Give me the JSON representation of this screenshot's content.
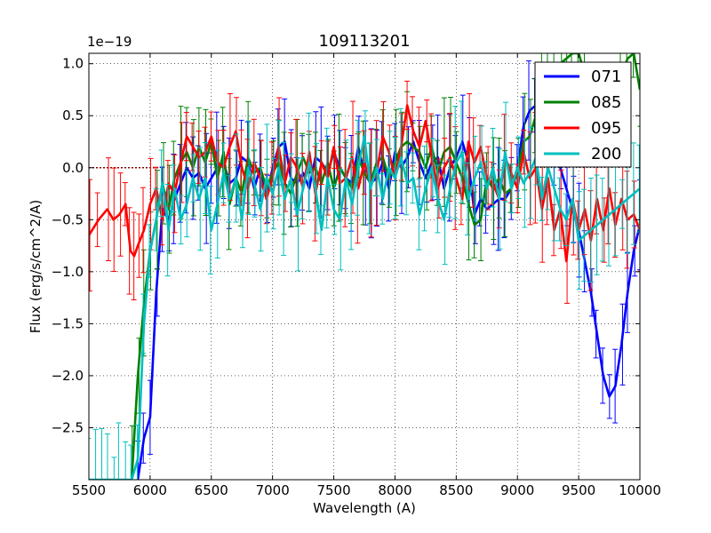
{
  "chart_data": {
    "type": "line",
    "title": "109113201",
    "xlabel": "Wavelength (A)",
    "ylabel": "Flux (erg/s/cm^2/A)",
    "offset_text": "1e−19",
    "xlim": [
      5500,
      10000
    ],
    "ylim": [
      -3.0,
      1.1
    ],
    "xticks": [
      5500,
      6000,
      6500,
      7000,
      7500,
      8000,
      8500,
      9000,
      9500,
      10000
    ],
    "yticks": [
      1.0,
      0.5,
      0.0,
      -0.5,
      -1.0,
      -1.5,
      -2.0,
      -2.5
    ],
    "ytick_labels": [
      "1.0",
      "0.5",
      "0.0",
      "−0.5",
      "−1.0",
      "−1.5",
      "−2.0",
      "−2.5"
    ],
    "grid": true,
    "legend_position": "top-right",
    "colors": {
      "071": "#0000ff",
      "085": "#008000",
      "095": "#ff0000",
      "200": "#00bfbf"
    },
    "series": [
      {
        "name": "071",
        "color": "#0000ff",
        "x": [
          5900,
          5950,
          6000,
          6050,
          6100,
          6150,
          6200,
          6250,
          6300,
          6350,
          6400,
          6450,
          6500,
          6550,
          6600,
          6650,
          6700,
          6750,
          6800,
          6850,
          6900,
          6950,
          7000,
          7050,
          7100,
          7150,
          7200,
          7250,
          7300,
          7350,
          7400,
          7450,
          7500,
          7550,
          7600,
          7650,
          7700,
          7750,
          7800,
          7850,
          7900,
          7950,
          8000,
          8050,
          8100,
          8150,
          8200,
          8250,
          8300,
          8350,
          8400,
          8450,
          8500,
          8550,
          8600,
          8650,
          8700,
          8750,
          8800,
          8850,
          8900,
          8950,
          9000,
          9050,
          9100,
          9150,
          9200,
          9250,
          9300,
          9350,
          9400,
          9450,
          9500,
          9550,
          9600,
          9650,
          9700,
          9750,
          9800,
          9850,
          9900,
          9950,
          10000
        ],
        "y": [
          -3.0,
          -2.6,
          -2.4,
          -1.2,
          -0.4,
          -0.5,
          -0.3,
          -0.15,
          0.0,
          -0.1,
          -0.05,
          -0.2,
          -0.1,
          0.0,
          0.05,
          -0.15,
          -0.1,
          0.1,
          0.05,
          -0.2,
          0.0,
          -0.3,
          0.0,
          0.2,
          0.25,
          -0.1,
          -0.15,
          -0.05,
          -0.2,
          0.1,
          0.05,
          -0.05,
          0.15,
          0.0,
          -0.1,
          -0.15,
          0.2,
          -0.05,
          -0.15,
          -0.1,
          0.05,
          -0.2,
          0.15,
          0.0,
          0.1,
          0.25,
          0.05,
          -0.1,
          0.05,
          0.1,
          -0.2,
          0.0,
          0.1,
          0.25,
          0.05,
          -0.45,
          -0.3,
          -0.4,
          -0.35,
          -0.3,
          -0.3,
          -0.2,
          0.0,
          0.4,
          0.55,
          0.6,
          0.55,
          0.4,
          0.2,
          0.0,
          -0.2,
          -0.4,
          -0.6,
          -0.9,
          -1.2,
          -1.6,
          -2.0,
          -2.2,
          -2.1,
          -1.7,
          -1.2,
          -0.8,
          -0.55
        ]
      },
      {
        "name": "085",
        "color": "#008000",
        "x": [
          5850,
          5900,
          5950,
          6000,
          6050,
          6100,
          6150,
          6200,
          6250,
          6300,
          6350,
          6400,
          6450,
          6500,
          6550,
          6600,
          6650,
          6700,
          6750,
          6800,
          6850,
          6900,
          6950,
          7000,
          7050,
          7100,
          7150,
          7200,
          7250,
          7300,
          7350,
          7400,
          7450,
          7500,
          7550,
          7600,
          7650,
          7700,
          7750,
          7800,
          7850,
          7900,
          7950,
          8000,
          8050,
          8100,
          8150,
          8200,
          8250,
          8300,
          8350,
          8400,
          8450,
          8500,
          8550,
          8600,
          8650,
          8700,
          8750,
          8800,
          8850,
          8900,
          8950,
          9000,
          9050,
          9100,
          9150,
          9200,
          9250,
          9300,
          9350,
          9400,
          9450,
          9500,
          9550,
          9600,
          9650,
          9700,
          9750,
          9800,
          9850,
          9900,
          9950,
          10000
        ],
        "y": [
          -3.0,
          -2.0,
          -1.3,
          -0.8,
          -0.5,
          -0.15,
          -0.4,
          -0.1,
          0.05,
          0.15,
          0.0,
          0.2,
          0.05,
          0.25,
          -0.1,
          0.15,
          -0.35,
          -0.1,
          -0.25,
          0.1,
          -0.05,
          0.0,
          -0.2,
          -0.05,
          0.05,
          -0.15,
          -0.25,
          -0.05,
          0.1,
          -0.05,
          0.0,
          -0.15,
          0.05,
          -0.2,
          0.0,
          -0.1,
          -0.2,
          0.1,
          -0.05,
          -0.15,
          0.05,
          0.1,
          -0.1,
          0.05,
          0.2,
          0.25,
          0.2,
          0.15,
          0.0,
          0.2,
          -0.05,
          0.15,
          0.2,
          0.05,
          -0.1,
          -0.35,
          -0.55,
          -0.5,
          -0.1,
          -0.2,
          -0.1,
          -0.25,
          -0.2,
          -0.05,
          0.25,
          0.3,
          0.5,
          0.7,
          0.85,
          0.95,
          1.0,
          1.05,
          1.1,
          1.1,
          0.9,
          0.7,
          0.6,
          0.55,
          0.6,
          0.7,
          0.9,
          1.05,
          1.1,
          0.75
        ]
      },
      {
        "name": "095",
        "color": "#ff0000",
        "x": [
          5500,
          5580,
          5650,
          5700,
          5750,
          5800,
          5840,
          5870,
          5900,
          5950,
          6000,
          6050,
          6100,
          6150,
          6200,
          6250,
          6300,
          6350,
          6400,
          6450,
          6500,
          6550,
          6600,
          6650,
          6700,
          6750,
          6800,
          6850,
          6900,
          6950,
          7000,
          7050,
          7100,
          7150,
          7200,
          7250,
          7300,
          7350,
          7400,
          7450,
          7500,
          7550,
          7600,
          7650,
          7700,
          7750,
          7800,
          7850,
          7900,
          7950,
          8000,
          8050,
          8100,
          8150,
          8200,
          8250,
          8300,
          8350,
          8400,
          8450,
          8500,
          8550,
          8600,
          8650,
          8700,
          8750,
          8800,
          8850,
          8900,
          8950,
          9000,
          9050,
          9100,
          9150,
          9200,
          9250,
          9300,
          9350,
          9400,
          9450,
          9500,
          9550,
          9600,
          9650,
          9700,
          9750,
          9800,
          9850,
          9900,
          9950,
          10000
        ],
        "y": [
          -0.65,
          -0.5,
          -0.4,
          -0.5,
          -0.45,
          -0.35,
          -0.8,
          -0.85,
          -0.75,
          -0.6,
          -0.35,
          -0.2,
          -0.5,
          -0.15,
          -0.25,
          0.05,
          0.3,
          0.2,
          0.1,
          0.15,
          0.3,
          0.05,
          0.0,
          0.2,
          0.35,
          0.0,
          -0.2,
          0.05,
          -0.1,
          -0.3,
          -0.1,
          0.2,
          -0.15,
          0.1,
          0.0,
          -0.2,
          0.15,
          -0.25,
          0.05,
          -0.1,
          0.2,
          -0.15,
          -0.1,
          0.1,
          -0.2,
          0.05,
          -0.15,
          -0.05,
          0.3,
          0.15,
          -0.1,
          0.2,
          0.6,
          0.35,
          0.2,
          0.45,
          0.1,
          -0.2,
          0.0,
          0.1,
          -0.1,
          -0.3,
          0.25,
          0.05,
          0.2,
          -0.1,
          -0.15,
          -0.3,
          0.1,
          -0.05,
          -0.2,
          0.15,
          -0.1,
          0.0,
          -0.4,
          -0.1,
          -0.6,
          -0.4,
          -0.9,
          -0.3,
          -0.6,
          -0.4,
          -0.7,
          -0.3,
          -0.6,
          -0.2,
          -0.55,
          -0.3,
          -0.5,
          -0.45,
          -0.6
        ]
      },
      {
        "name": "200",
        "color": "#00bfbf",
        "x": [
          5500,
          5550,
          5600,
          5650,
          5700,
          5750,
          5800,
          5850,
          5900,
          5950,
          6000,
          6050,
          6100,
          6150,
          6200,
          6250,
          6300,
          6350,
          6400,
          6450,
          6500,
          6550,
          6600,
          6650,
          6700,
          6750,
          6800,
          6850,
          6900,
          6950,
          7000,
          7050,
          7100,
          7150,
          7200,
          7250,
          7300,
          7350,
          7400,
          7450,
          7500,
          7550,
          7600,
          7650,
          7700,
          7750,
          7800,
          7850,
          7900,
          7950,
          8000,
          8050,
          8100,
          8150,
          8200,
          8250,
          8300,
          8350,
          8400,
          8450,
          8500,
          8550,
          8600,
          8650,
          8700,
          8750,
          8800,
          8850,
          8900,
          8950,
          9000,
          9050,
          9100,
          9150,
          9200,
          9250,
          9300,
          9350,
          9400,
          9450,
          9500,
          9550,
          9600,
          9650,
          9700,
          9750,
          9800,
          9850,
          9900,
          9950,
          10000
        ],
        "y": [
          -3.0,
          -3.0,
          -3.0,
          -3.0,
          -3.0,
          -3.0,
          -3.0,
          -3.0,
          -2.8,
          -1.5,
          -0.8,
          -0.5,
          -0.15,
          -0.6,
          -0.2,
          -0.5,
          -0.35,
          -0.1,
          -0.3,
          -0.1,
          -0.6,
          -0.35,
          -0.05,
          -0.3,
          -0.1,
          -0.5,
          0.0,
          -0.15,
          -0.4,
          -0.1,
          -0.25,
          0.0,
          -0.3,
          -0.1,
          -0.45,
          -0.2,
          0.05,
          -0.2,
          -0.6,
          -0.1,
          -0.4,
          -0.5,
          -0.1,
          -0.35,
          0.0,
          0.3,
          -0.2,
          0.0,
          -0.3,
          0.0,
          -0.1,
          0.1,
          -0.15,
          -0.1,
          -0.45,
          -0.2,
          0.0,
          -0.3,
          -0.5,
          -0.2,
          0.05,
          0.15,
          -0.3,
          -0.1,
          0.05,
          -0.2,
          0.0,
          -0.3,
          0.15,
          -0.2,
          0.0,
          -0.15,
          -0.05,
          0.1,
          -0.3,
          0.0,
          -0.2,
          -0.4,
          -0.5,
          -0.3,
          -0.7,
          -0.65,
          -0.6,
          -0.55,
          -0.5,
          -0.45,
          -0.4,
          -0.35,
          -0.3,
          -0.25,
          -0.2
        ]
      }
    ]
  }
}
